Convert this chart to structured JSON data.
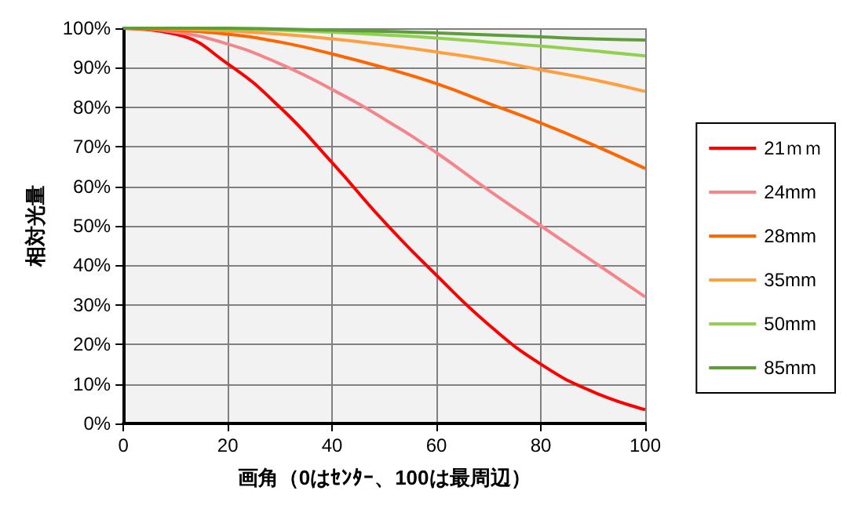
{
  "chart_data": {
    "type": "line",
    "xlabel": "画角（0はｾﾝﾀｰ、100は最周辺）",
    "ylabel": "相対光量",
    "x": [
      0,
      10,
      20,
      30,
      40,
      50,
      60,
      70,
      80,
      90,
      100
    ],
    "series": [
      {
        "name": "21ｍｍ",
        "color": "#ff0000",
        "values": [
          100,
          98.5,
          91,
          80,
          66,
          51,
          37.5,
          25,
          15,
          8,
          3.5
        ]
      },
      {
        "name": "24mm",
        "color": "#f4858b",
        "values": [
          100,
          99,
          96,
          91,
          84.5,
          77,
          68.5,
          59,
          50,
          41,
          32
        ]
      },
      {
        "name": "28mm",
        "color": "#ff6600",
        "values": [
          100,
          99.5,
          98.5,
          96.5,
          93.5,
          90,
          86,
          81,
          76,
          70.5,
          64.5
        ]
      },
      {
        "name": "35mm",
        "color": "#ffa040",
        "values": [
          100,
          99.8,
          99.3,
          98.5,
          97.3,
          95.8,
          94,
          92,
          89.5,
          87,
          84
        ]
      },
      {
        "name": "50mm",
        "color": "#92d050",
        "values": [
          100,
          100,
          99.8,
          99.5,
          99,
          98.3,
          97.5,
          96.5,
          95.5,
          94.3,
          93
        ]
      },
      {
        "name": "85mm",
        "color": "#5e9e3a",
        "values": [
          100,
          100,
          100,
          99.8,
          99.5,
          99.2,
          98.8,
          98.3,
          97.8,
          97.3,
          97
        ]
      }
    ],
    "xlim": [
      0,
      100
    ],
    "xticks": [
      0,
      20,
      40,
      60,
      80,
      100
    ],
    "ylim": [
      0,
      100
    ],
    "yticks": [
      {
        "value": 0,
        "label": "0%"
      },
      {
        "value": 10,
        "label": "10%"
      },
      {
        "value": 20,
        "label": "20%"
      },
      {
        "value": 30,
        "label": "30%"
      },
      {
        "value": 40,
        "label": "40%"
      },
      {
        "value": 50,
        "label": "50%"
      },
      {
        "value": 60,
        "label": "60%"
      },
      {
        "value": 70,
        "label": "70%"
      },
      {
        "value": 80,
        "label": "80%"
      },
      {
        "value": 90,
        "label": "90%"
      },
      {
        "value": 100,
        "label": "100%"
      }
    ],
    "grid": true,
    "legend": "right",
    "marker": "none",
    "line_style": "solid"
  }
}
